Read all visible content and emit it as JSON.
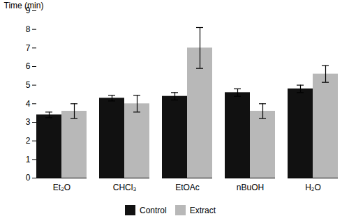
{
  "chart_data": {
    "type": "bar",
    "categories": [
      "Et₂O",
      "CHCl₃",
      "EtOAc",
      "nBuOH",
      "H₂O"
    ],
    "series": [
      {
        "name": "Control",
        "color": "#111111",
        "values": [
          3.4,
          4.3,
          4.4,
          4.6,
          4.8
        ],
        "errors": [
          0.15,
          0.15,
          0.2,
          0.2,
          0.2
        ]
      },
      {
        "name": "Extract",
        "color": "#b8b8b8",
        "values": [
          3.6,
          4.0,
          7.0,
          3.6,
          5.6
        ],
        "errors": [
          0.4,
          0.45,
          1.1,
          0.4,
          0.45
        ]
      }
    ],
    "ylabel": "Time (min)",
    "ylim": [
      0,
      9
    ],
    "yticks": [
      0,
      1,
      2,
      3,
      4,
      5,
      6,
      7,
      8,
      9
    ],
    "grid": false,
    "legend": "bottom"
  }
}
